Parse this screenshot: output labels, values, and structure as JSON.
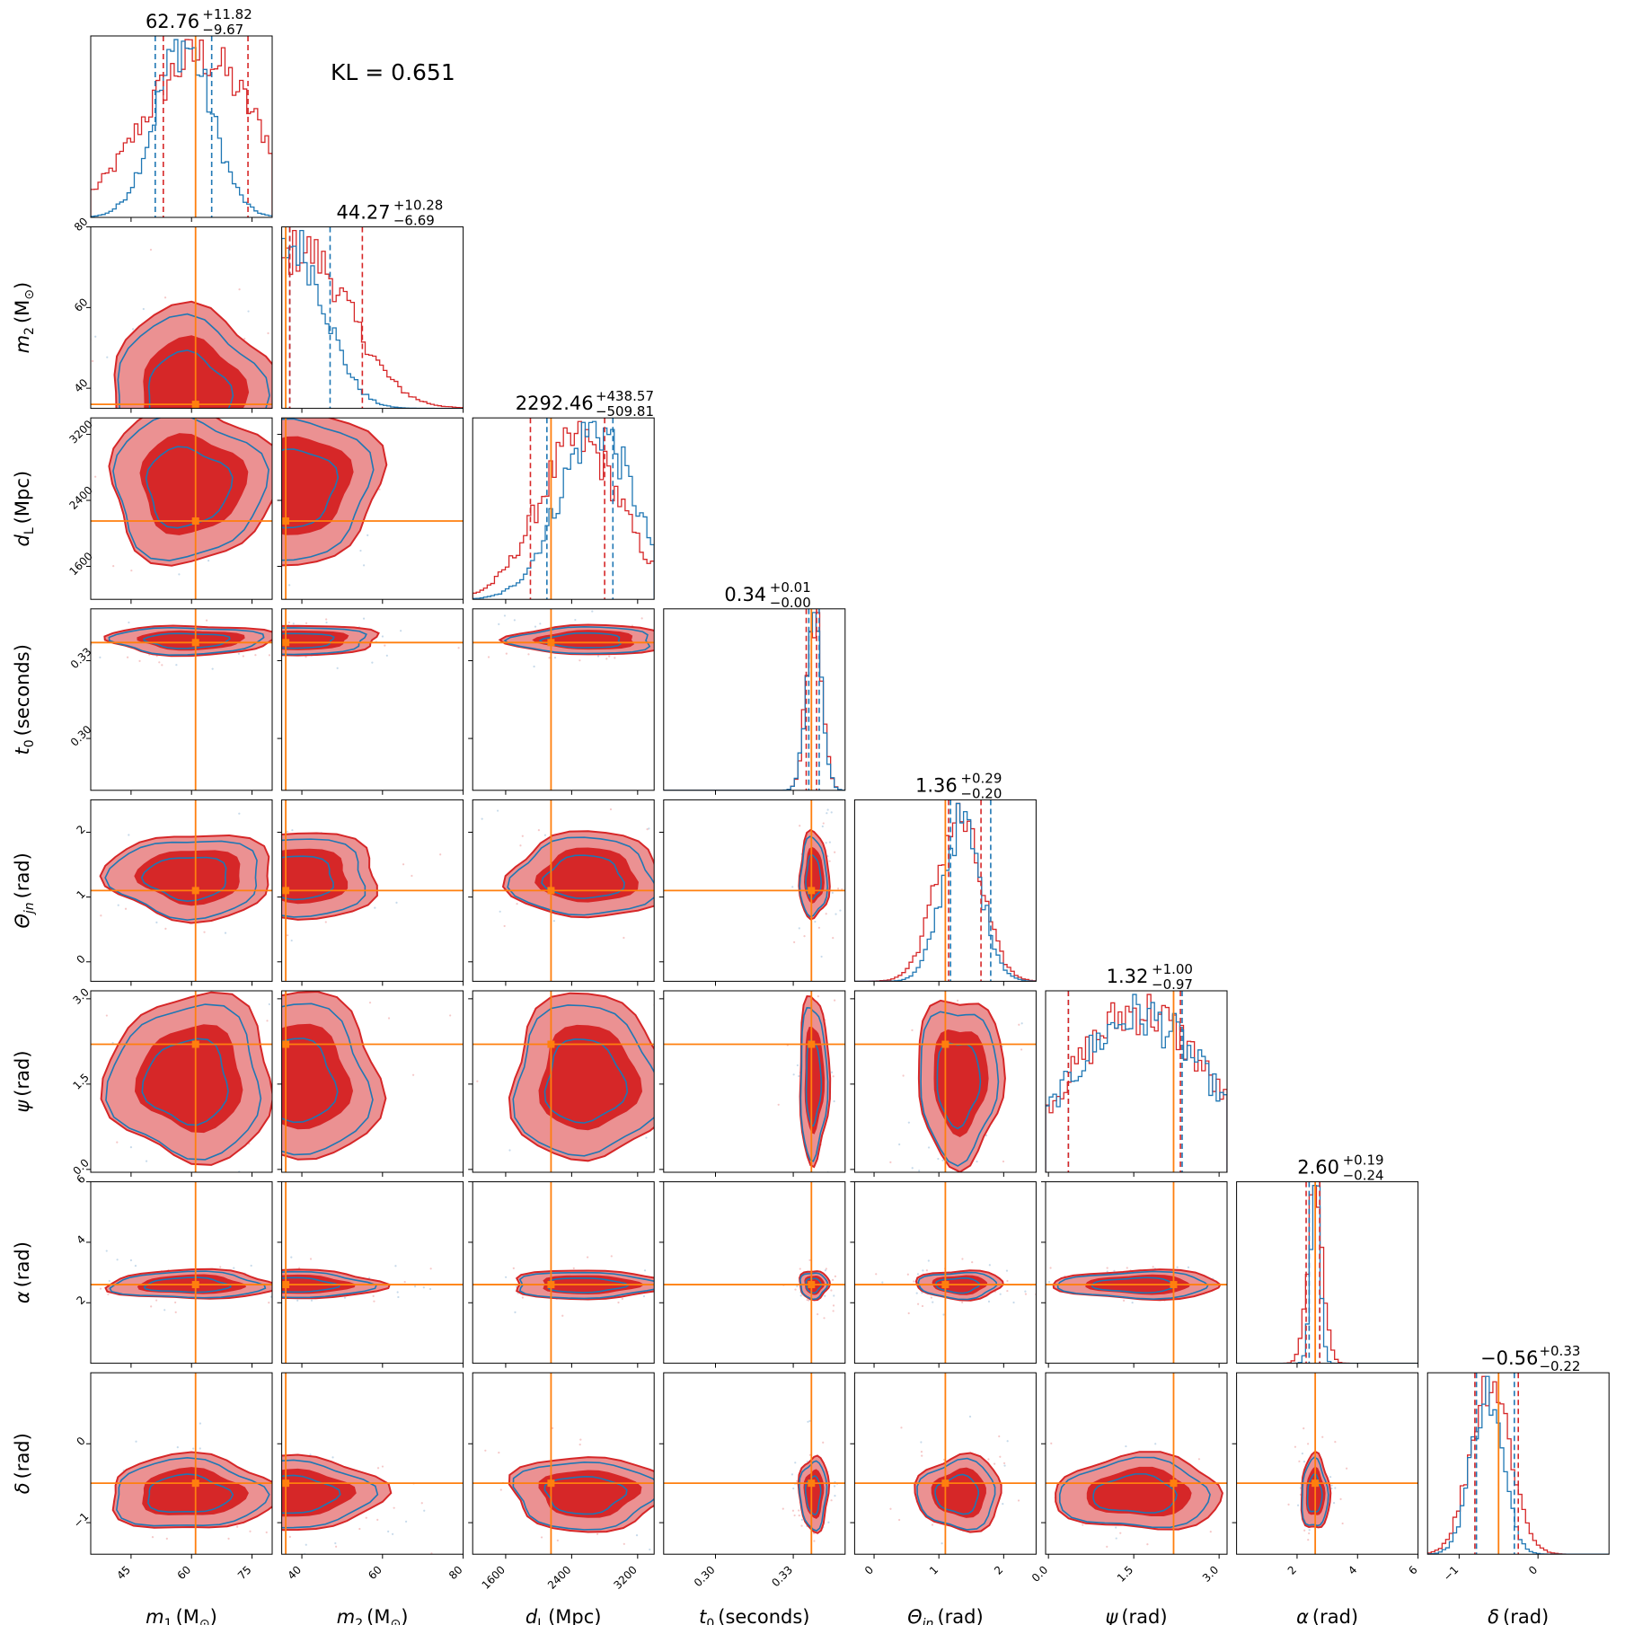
{
  "colors": {
    "red": "#d62728",
    "blue": "#1f77b4",
    "truth": "#ff7f0e",
    "red_fill": "#eb9192",
    "blue_dot": "#8fb5d6"
  },
  "kl_text": "KL = 0.651",
  "chart_data": {
    "type": "corner",
    "title": "",
    "n": 8,
    "legend": "none",
    "grid": false,
    "parameters": [
      {
        "label_main": "m",
        "label_sub": "1",
        "label_unit": "(M",
        "label_unit_sub": "⊙",
        "label_close": ")",
        "range": [
          35,
          80
        ],
        "truth": 61,
        "ticks": [
          45,
          60,
          75
        ],
        "tick_labels": [
          "45",
          "60",
          "75"
        ],
        "title_main": "62.76",
        "title_plus": "+11.82",
        "title_minus": "−9.67",
        "blue_peak": 58,
        "blue_sigma": 7,
        "red_peak": 62,
        "red_sigma": 14,
        "blue_quantiles": [
          51,
          65
        ],
        "red_quantiles": [
          53,
          74
        ],
        "median": 62.76
      },
      {
        "label_main": "m",
        "label_sub": "2",
        "label_unit": "(M",
        "label_unit_sub": "⊙",
        "label_close": ")",
        "range": [
          35,
          80
        ],
        "truth": 36,
        "ticks": [
          40,
          60,
          80
        ],
        "tick_labels": [
          "40",
          "60",
          "80"
        ],
        "title_main": "44.27",
        "title_plus": "+10.28",
        "title_minus": "−6.69",
        "blue_peak": 38,
        "blue_sigma": 8,
        "red_peak": 40,
        "red_sigma": 12,
        "blue_quantiles": [
          37,
          47
        ],
        "red_quantiles": [
          37,
          55
        ],
        "median": 44.27
      },
      {
        "label_main": "d",
        "label_sub": "L",
        "label_unit": "(Mpc)",
        "label_unit_sub": "",
        "label_close": "",
        "range": [
          1200,
          3400
        ],
        "truth": 2150,
        "ticks": [
          1600,
          2400,
          3200
        ],
        "tick_labels": [
          "1600",
          "2400",
          "3200"
        ],
        "title_main": "2292.46",
        "title_plus": "+438.57",
        "title_minus": "−509.81",
        "blue_peak": 2700,
        "blue_sigma": 450,
        "red_peak": 2500,
        "red_sigma": 500,
        "blue_quantiles": [
          2100,
          2900
        ],
        "red_quantiles": [
          1900,
          2800
        ],
        "median": 2292.46
      },
      {
        "label_main": "t",
        "label_sub": "0",
        "label_unit": "(seconds)",
        "label_unit_sub": "",
        "label_close": "",
        "range": [
          0.28,
          0.35
        ],
        "truth": 0.337,
        "ticks": [
          0.3,
          0.33
        ],
        "tick_labels": [
          "0.30",
          "0.33"
        ],
        "title_main": "0.34",
        "title_plus": "+0.01",
        "title_minus": "−0.00",
        "blue_peak": 0.338,
        "blue_sigma": 0.003,
        "red_peak": 0.338,
        "red_sigma": 0.003,
        "blue_quantiles": [
          0.336,
          0.34
        ],
        "red_quantiles": [
          0.335,
          0.339
        ],
        "median": 0.34
      },
      {
        "label_main": "Θ",
        "label_sub": "jn",
        "label_unit": "(rad)",
        "label_unit_sub": "",
        "label_close": "",
        "range": [
          -0.3,
          2.5
        ],
        "truth": 1.1,
        "ticks": [
          0,
          1,
          2
        ],
        "tick_labels": [
          "0",
          "1",
          "2"
        ],
        "title_main": "1.36",
        "title_plus": "+0.29",
        "title_minus": "−0.20",
        "blue_peak": 1.35,
        "blue_sigma": 0.3,
        "red_peak": 1.3,
        "red_sigma": 0.35,
        "blue_quantiles": [
          1.18,
          1.8
        ],
        "red_quantiles": [
          1.15,
          1.65
        ],
        "median": 1.36
      },
      {
        "label_main": "ψ",
        "label_sub": "",
        "label_unit": "(rad)",
        "label_unit_sub": "",
        "label_close": "",
        "range": [
          -0.05,
          3.14
        ],
        "truth": 2.2,
        "ticks": [
          0.0,
          1.5,
          3.0
        ],
        "tick_labels": [
          "0.0",
          "1.5",
          "3.0"
        ],
        "title_main": "1.32",
        "title_plus": "+1.00",
        "title_minus": "−0.97",
        "blue_peak": 1.6,
        "blue_sigma": 1.2,
        "red_peak": 1.6,
        "red_sigma": 1.2,
        "blue_quantiles": [
          0.35,
          2.35
        ],
        "red_quantiles": [
          0.35,
          2.32
        ],
        "median": 1.32
      },
      {
        "label_main": "α",
        "label_sub": "",
        "label_unit": "(rad)",
        "label_unit_sub": "",
        "label_close": "",
        "range": [
          0,
          6
        ],
        "truth": 2.6,
        "ticks": [
          2,
          4,
          6
        ],
        "tick_labels": [
          "2",
          "4",
          "6"
        ],
        "title_main": "2.60",
        "title_plus": "+0.19",
        "title_minus": "−0.24",
        "blue_peak": 2.6,
        "blue_sigma": 0.15,
        "red_peak": 2.6,
        "red_sigma": 0.25,
        "blue_quantiles": [
          2.4,
          2.75
        ],
        "red_quantiles": [
          2.3,
          2.75
        ],
        "median": 2.6
      },
      {
        "label_main": "δ",
        "label_sub": "",
        "label_unit": "(rad)",
        "label_unit_sub": "",
        "label_close": "",
        "range": [
          -1.4,
          0.9
        ],
        "truth": -0.5,
        "ticks": [
          -1,
          0
        ],
        "tick_labels": [
          "−1",
          "0"
        ],
        "title_main": "−0.56",
        "title_plus": "+0.33",
        "title_minus": "−0.22",
        "blue_peak": -0.65,
        "blue_sigma": 0.2,
        "red_peak": -0.6,
        "red_sigma": 0.25,
        "blue_quantiles": [
          -0.78,
          -0.3
        ],
        "red_quantiles": [
          -0.8,
          -0.25
        ],
        "median": -0.56
      }
    ]
  }
}
